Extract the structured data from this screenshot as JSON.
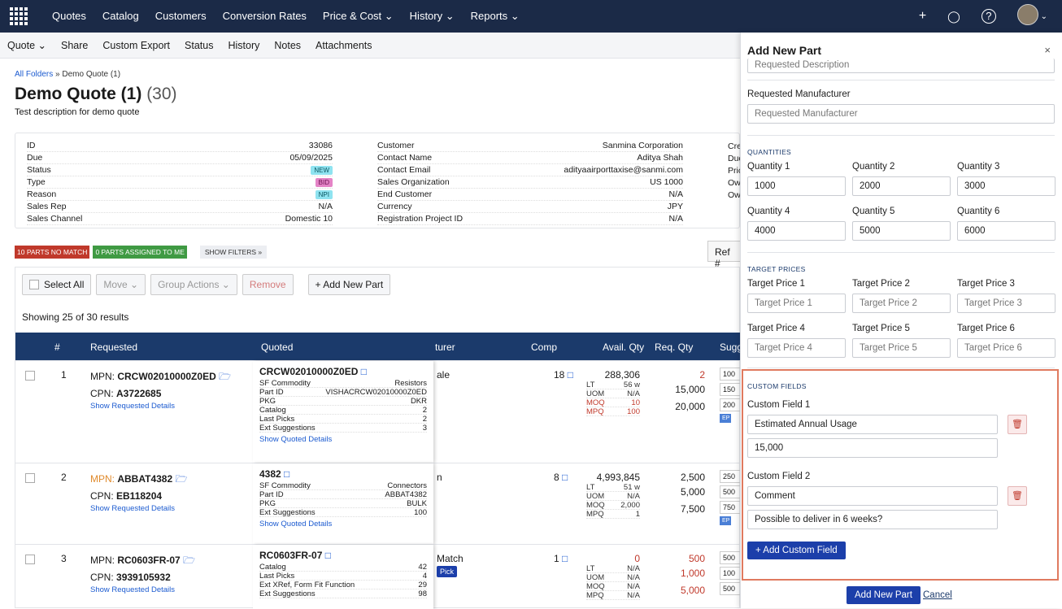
{
  "nav": {
    "items": [
      "Quotes",
      "Catalog",
      "Customers",
      "Conversion Rates",
      "Price & Cost ⌄",
      "History ⌄",
      "Reports ⌄"
    ],
    "plus": "+",
    "bell": "🔔",
    "help": "?"
  },
  "toolbar": {
    "items": [
      "Quote ⌄",
      "Share",
      "Custom Export",
      "Status",
      "History",
      "Notes",
      "Attachments"
    ]
  },
  "breadcrumb": {
    "root": "All Folders",
    "sep": " » ",
    "current": "Demo Quote (1)"
  },
  "quote": {
    "title": "Demo Quote (1)",
    "count": "(30)",
    "description": "Test description for demo quote"
  },
  "info": {
    "left": [
      [
        "ID",
        "33086"
      ],
      [
        "Due",
        "05/09/2025"
      ],
      [
        "Status",
        "NEW"
      ],
      [
        "Type",
        "BID"
      ],
      [
        "Reason",
        "NPI"
      ],
      [
        "Sales Rep",
        "N/A"
      ],
      [
        "Sales Channel",
        "Domestic 10"
      ]
    ],
    "mid": [
      [
        "Customer",
        "Sanmina Corporation"
      ],
      [
        "Contact Name",
        "Aditya Shah"
      ],
      [
        "Contact Email",
        "adityaairporttaxise@sanmi.com"
      ],
      [
        "Sales Organization",
        "US 1000"
      ],
      [
        "End Customer",
        "N/A"
      ],
      [
        "Currency",
        "JPY"
      ],
      [
        "Registration Project ID",
        "N/A"
      ]
    ],
    "right": [
      "Cre",
      "Due",
      "Pric",
      "Ow",
      "Ow"
    ]
  },
  "filters": {
    "nomatch": "10 PARTS NO MATCH",
    "assigned": "0 PARTS ASSIGNED TO ME",
    "show": "SHOW FILTERS »",
    "ref": "Ref #"
  },
  "actions": {
    "select_all": "Select All",
    "move": "Move ⌄",
    "group": "Group Actions ⌄",
    "remove": "Remove",
    "add": "+ Add New Part"
  },
  "showing": "Showing 25 of 30 results",
  "table": {
    "headers": [
      "#",
      "Requested",
      "Quoted",
      "turer",
      "Comp",
      "Avail. Qty",
      "Req. Qty",
      "Sugg"
    ]
  },
  "rows": [
    {
      "num": "1",
      "mpn_label": "MPN: ",
      "mpn": "CRCW02010000Z0ED",
      "cpn_label": "CPN: ",
      "cpn": "A3722685",
      "req_link": "Show Requested Details",
      "q_title": "CRCW02010000Z0ED",
      "q_kv": [
        [
          "SF Commodity",
          "Resistors"
        ],
        [
          "Part ID",
          "VISHACRCW02010000Z0ED"
        ],
        [
          "PKG",
          "DKR"
        ],
        [
          "Catalog",
          "2"
        ],
        [
          "Last Picks",
          "2"
        ],
        [
          "Ext Suggestions",
          "3"
        ]
      ],
      "q_link": "Show Quoted Details",
      "mfr": "ale",
      "comp": "18",
      "avail": "288,306",
      "lt": [
        "LT",
        "56 w"
      ],
      "uom": [
        "UOM",
        "N/A"
      ],
      "moq": [
        "MOQ",
        "10"
      ],
      "mpq": [
        "MPQ",
        "100"
      ],
      "req": [
        "2",
        "15,000",
        "20,000"
      ],
      "sugg": [
        "100",
        "150",
        "200"
      ]
    },
    {
      "num": "2",
      "mpn_label": "MPN: ",
      "mpn": "ABBAT4382",
      "cpn_label": "CPN: ",
      "cpn": "EB118204",
      "req_link": "Show Requested Details",
      "q_title": "4382",
      "q_kv": [
        [
          "SF Commodity",
          "Connectors"
        ],
        [
          "Part ID",
          "ABBAT4382"
        ],
        [
          "PKG",
          "BULK"
        ],
        [
          "Ext Suggestions",
          "100"
        ]
      ],
      "q_link": "Show Quoted Details",
      "mfr": "n",
      "comp": "8",
      "avail": "4,993,845",
      "lt": [
        "LT",
        "51 w"
      ],
      "uom": [
        "UOM",
        "N/A"
      ],
      "moq": [
        "MOQ",
        "2,000"
      ],
      "mpq": [
        "MPQ",
        "1"
      ],
      "req": [
        "2,500",
        "5,000",
        "7,500"
      ],
      "sugg": [
        "250",
        "500",
        "750"
      ]
    },
    {
      "num": "3",
      "mpn_label": "MPN: ",
      "mpn": "RC0603FR-07",
      "cpn_label": "CPN: ",
      "cpn": "3939105932",
      "req_link": "Show Requested Details",
      "q_title": "RC0603FR-07",
      "q_kv": [
        [
          "Catalog",
          "42"
        ],
        [
          "Last Picks",
          "4"
        ],
        [
          "Ext XRef, Form Fit Function",
          "29"
        ],
        [
          "Ext Suggestions",
          "98"
        ]
      ],
      "mfr": "Match",
      "pick": "Pick",
      "comp": "1",
      "avail": "0",
      "lt": [
        "LT",
        "N/A"
      ],
      "uom": [
        "UOM",
        "N/A"
      ],
      "moq": [
        "MOQ",
        "N/A"
      ],
      "mpq": [
        "MPQ",
        "N/A"
      ],
      "req": [
        "500",
        "1,000",
        "5,000"
      ],
      "sugg": [
        "500",
        "100",
        "500"
      ]
    }
  ],
  "ep": "EP",
  "drawer": {
    "title": "Add New Part",
    "close": "×",
    "req_desc_ph": "Requested Description",
    "req_mfr_label": "Requested Manufacturer",
    "req_mfr_ph": "Requested Manufacturer",
    "quantities_title": "QUANTITIES",
    "quantities": [
      [
        "Quantity 1",
        "1000"
      ],
      [
        "Quantity 2",
        "2000"
      ],
      [
        "Quantity 3",
        "3000"
      ],
      [
        "Quantity 4",
        "4000"
      ],
      [
        "Quantity 5",
        "5000"
      ],
      [
        "Quantity 6",
        "6000"
      ]
    ],
    "targets_title": "TARGET PRICES",
    "targets": [
      [
        "Target Price 1",
        "Target Price 1"
      ],
      [
        "Target Price 2",
        "Target Price 2"
      ],
      [
        "Target Price 3",
        "Target Price 3"
      ],
      [
        "Target Price 4",
        "Target Price 4"
      ],
      [
        "Target Price 5",
        "Target Price 5"
      ],
      [
        "Target Price 6",
        "Target Price 6"
      ]
    ],
    "custom_title": "CUSTOM FIELDS",
    "cf1_label": "Custom Field 1",
    "cf1_name": "Estimated Annual Usage",
    "cf1_value": "15,000",
    "cf2_label": "Custom Field 2",
    "cf2_name": "Comment",
    "cf2_value": "Possible to deliver in 6 weeks?",
    "add_cf": "+ Add Custom Field",
    "submit": "Add New Part",
    "cancel": "Cancel"
  },
  "colors": {
    "nav": "#1b2a47",
    "header": "#1b3a6b",
    "accent": "#1c3faa",
    "highlight": "#e07a5f"
  }
}
